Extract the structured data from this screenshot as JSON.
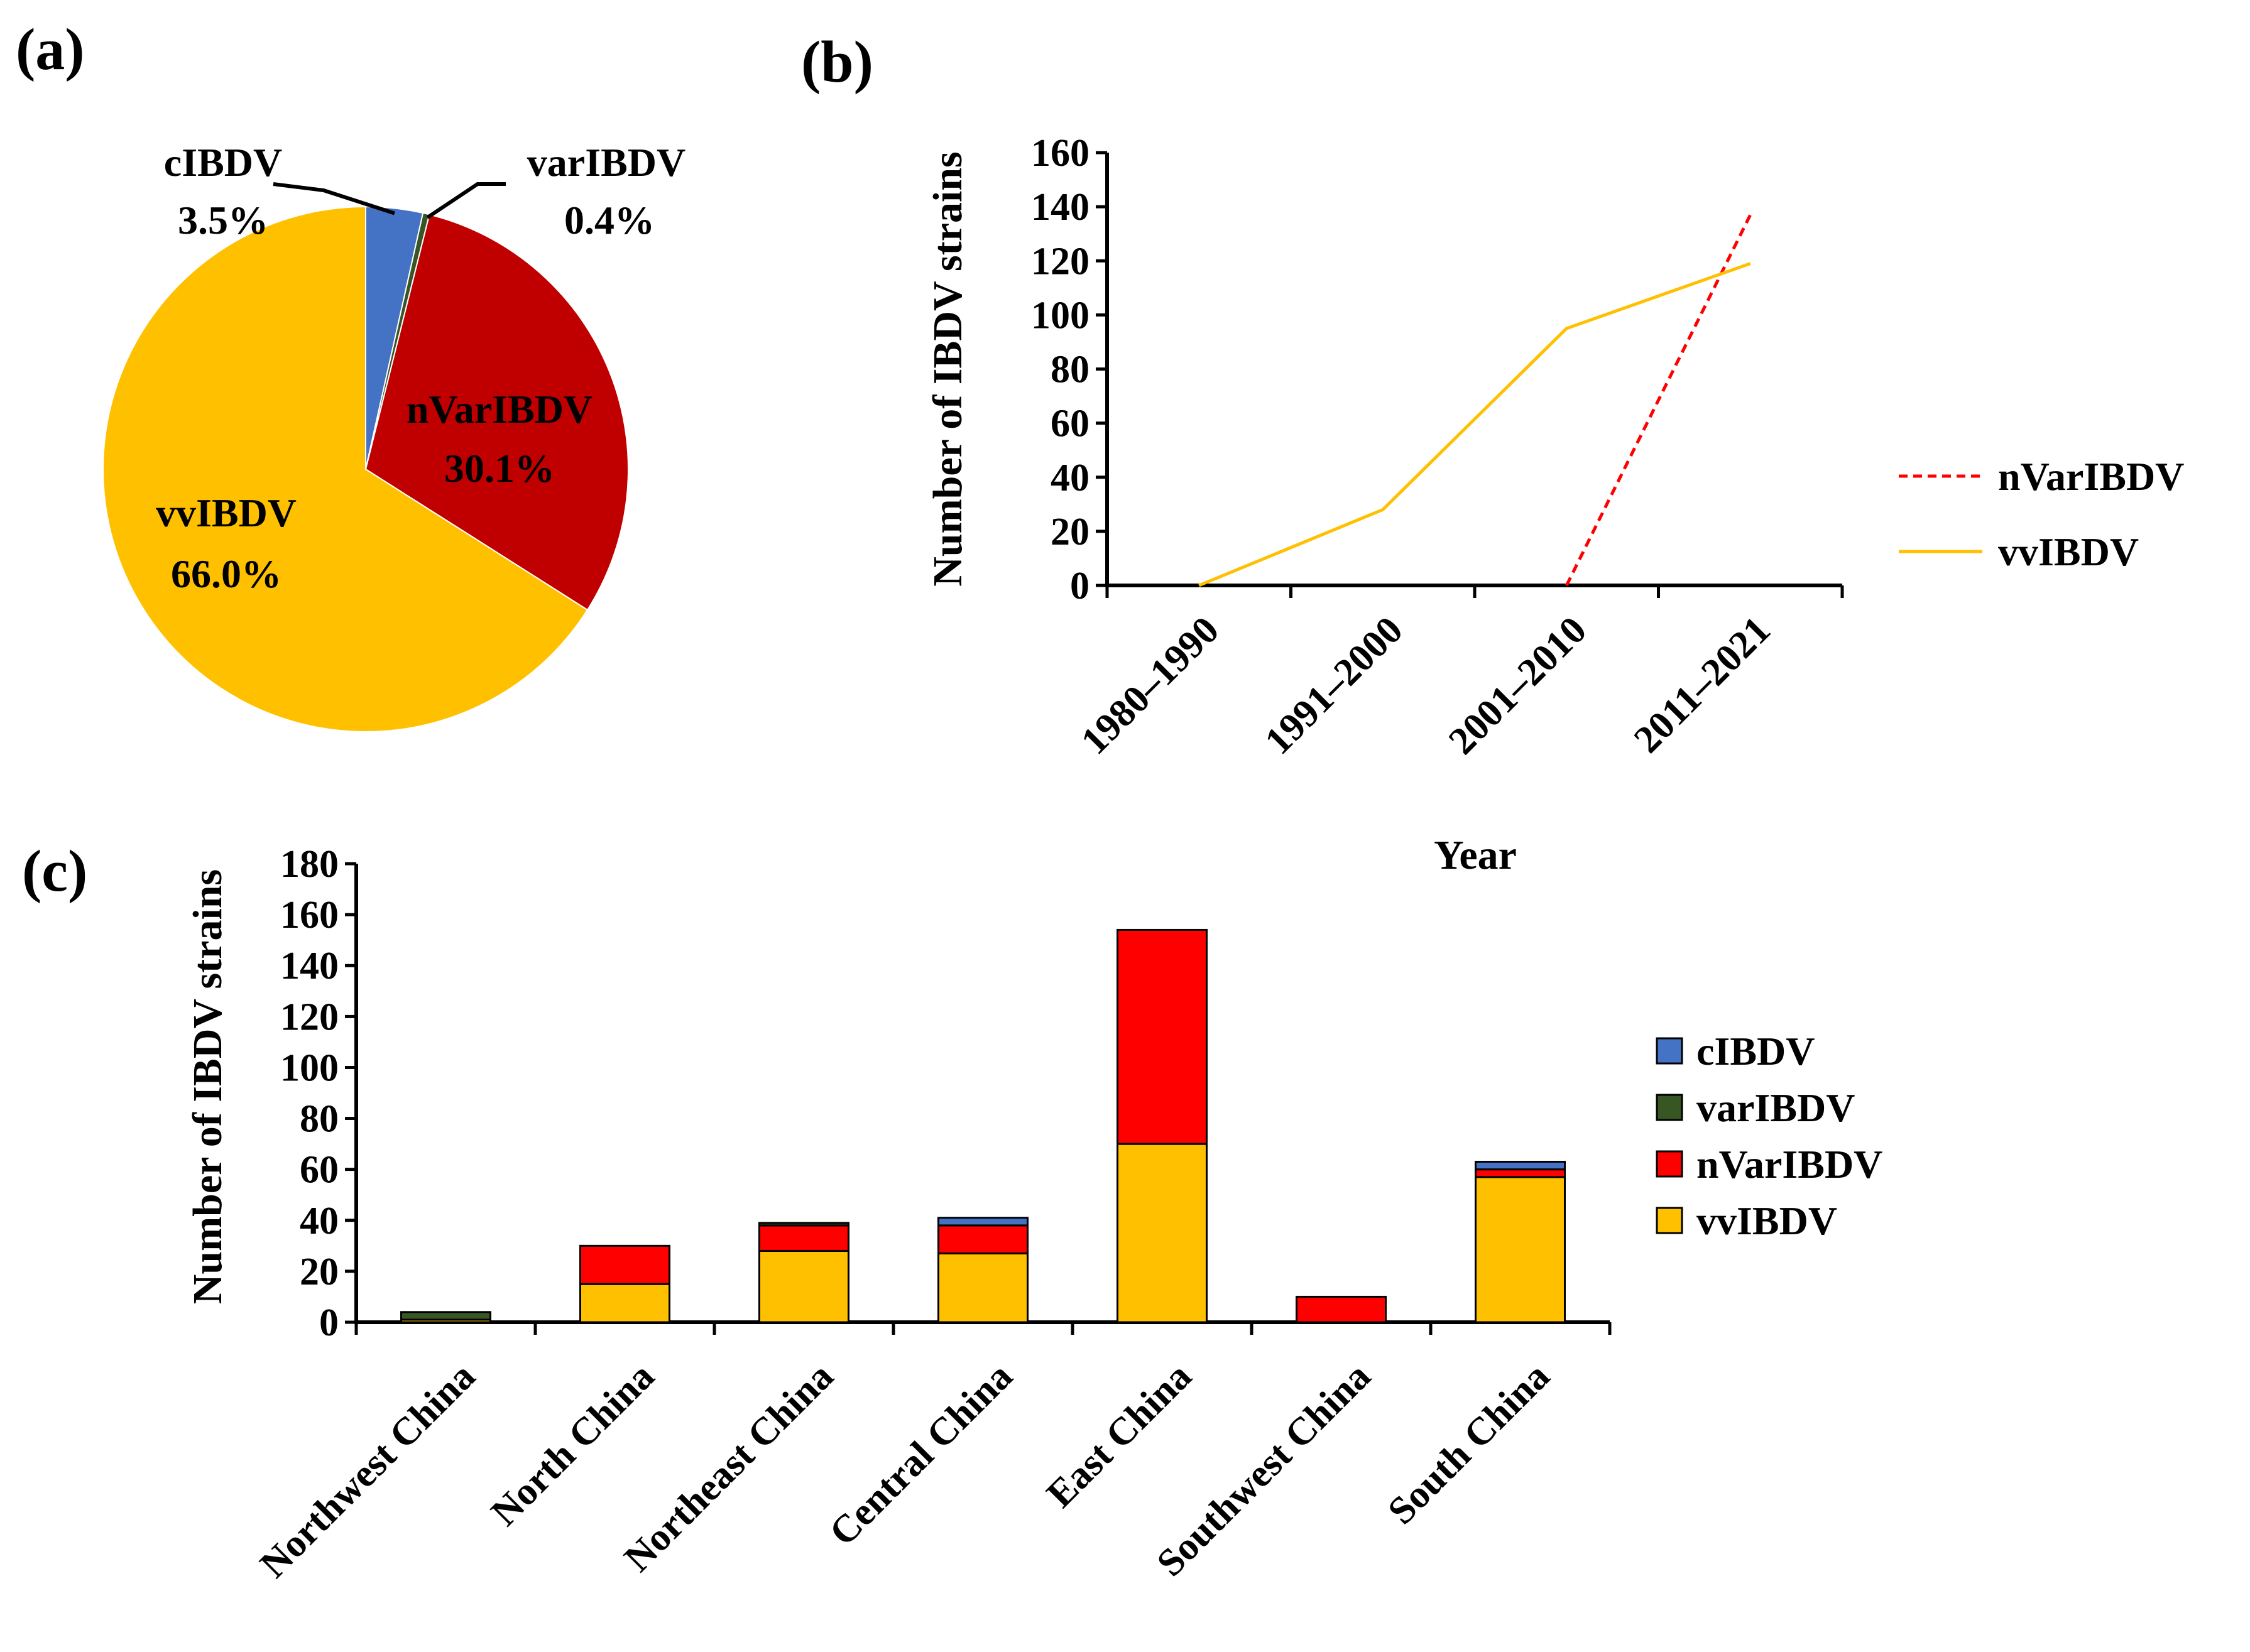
{
  "panels": {
    "a": "(a)",
    "b": "(b)",
    "c": "(c)"
  },
  "chart_data": [
    {
      "panel": "(a)",
      "type": "pie",
      "slices": [
        {
          "name": "cIBDV",
          "value": 3.5,
          "label": "3.5%",
          "color": "#4472C4"
        },
        {
          "name": "varIBDV",
          "value": 0.4,
          "label": "0.4%",
          "color": "#375623"
        },
        {
          "name": "nVarIBDV",
          "value": 30.1,
          "label": "30.1%",
          "color": "#C00000"
        },
        {
          "name": "vvIBDV",
          "value": 66.0,
          "label": "66.0%",
          "color": "#FFC000"
        }
      ]
    },
    {
      "panel": "(b)",
      "type": "line",
      "categories": [
        "1980–1990",
        "1991–2000",
        "2001–2010",
        "2011–2021"
      ],
      "series": [
        {
          "name": "nVarIBDV",
          "values": [
            null,
            null,
            0,
            137
          ],
          "color": "#FF0000",
          "dash": true
        },
        {
          "name": "vvIBDV",
          "values": [
            0,
            28,
            95,
            119
          ],
          "color": "#FFC000",
          "dash": false
        }
      ],
      "xlabel": "Year",
      "ylabel": "Number of IBDV strains",
      "ylim": [
        0,
        160
      ],
      "yticks": [
        0,
        20,
        40,
        60,
        80,
        100,
        120,
        140,
        160
      ],
      "legend": "right"
    },
    {
      "panel": "(c)",
      "type": "bar",
      "stacked": true,
      "categories": [
        "Northwest China",
        "North China",
        "Northeast China",
        "Central China",
        "East China",
        "Southwest China",
        "South China"
      ],
      "series": [
        {
          "name": "vvIBDV",
          "values": [
            1,
            15,
            28,
            27,
            70,
            0,
            57
          ],
          "color": "#FFC000"
        },
        {
          "name": "nVarIBDV",
          "values": [
            0,
            15,
            10,
            11,
            84,
            10,
            3
          ],
          "color": "#FF0000"
        },
        {
          "name": "varIBDV",
          "values": [
            3,
            0,
            1,
            0,
            0,
            0,
            0
          ],
          "color": "#375623"
        },
        {
          "name": "cIBDV",
          "values": [
            0,
            0,
            0,
            3,
            0,
            0,
            3
          ],
          "color": "#4472C4"
        }
      ],
      "legend_order": [
        "cIBDV",
        "varIBDV",
        "nVarIBDV",
        "vvIBDV"
      ],
      "xlabel": "",
      "ylabel": "Number of IBDV strains",
      "ylim": [
        0,
        180
      ],
      "yticks": [
        0,
        20,
        40,
        60,
        80,
        100,
        120,
        140,
        160,
        180
      ],
      "legend": "right"
    }
  ]
}
